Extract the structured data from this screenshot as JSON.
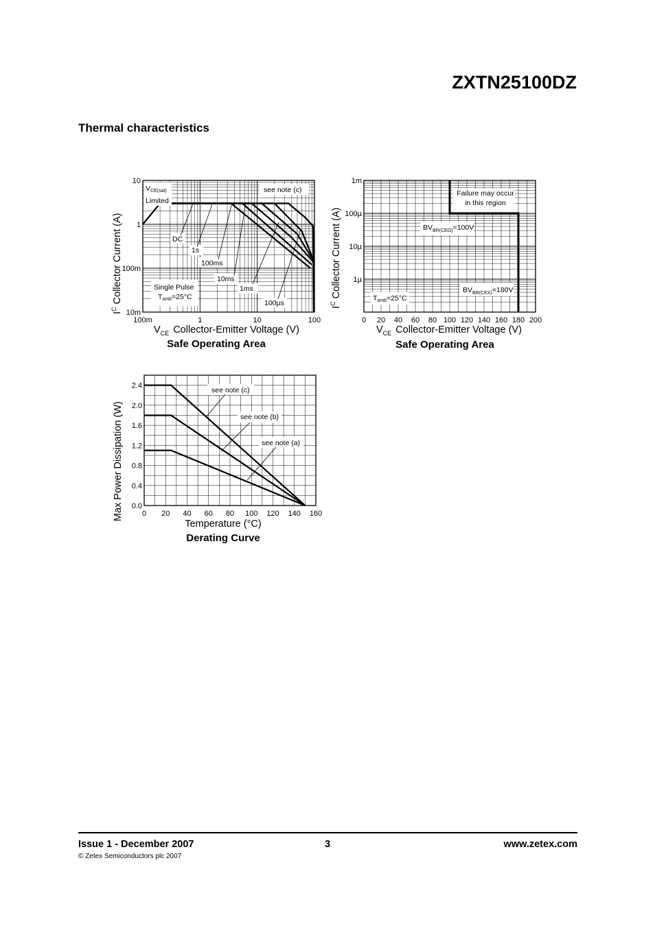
{
  "header": {
    "part_number": "ZXTN25100DZ"
  },
  "section": {
    "title": "Thermal characteristics"
  },
  "footer": {
    "issue": "Issue 1 - December 2007",
    "page": "3",
    "website": "www.zetex.com",
    "copyright": "© Zetex Semiconductors plc 2007"
  },
  "chart_data": [
    {
      "type": "line",
      "title": "Safe Operating Area",
      "xlabel": "Collector-Emitter Voltage (V)",
      "xlabel_symbol": "V",
      "xlabel_symbol_sub": "CE",
      "ylabel": "Collector Current (A)",
      "ylabel_symbol": "I",
      "ylabel_symbol_sub": "C",
      "x_scale": "log",
      "y_scale": "log",
      "xlim": [
        0.1,
        100
      ],
      "ylim": [
        0.01,
        10
      ],
      "x_ticks": [
        0.1,
        1,
        10,
        100
      ],
      "x_tick_labels": [
        "100m",
        "1",
        "10",
        "100"
      ],
      "y_ticks": [
        0.01,
        0.1,
        1,
        10
      ],
      "y_tick_labels": [
        "10m",
        "100m",
        "1",
        "10"
      ],
      "grid": true,
      "series": [
        {
          "name": "DC",
          "x": [
            0.1,
            0.2,
            3.5,
            85
          ],
          "y": [
            1,
            3,
            3,
            0.1
          ]
        },
        {
          "name": "1s",
          "x": [
            0.2,
            5.5,
            90
          ],
          "y": [
            3,
            3,
            0.12
          ]
        },
        {
          "name": "100ms",
          "x": [
            0.2,
            8,
            40,
            95
          ],
          "y": [
            3,
            3,
            0.5,
            0.14
          ]
        },
        {
          "name": "10ms",
          "x": [
            0.2,
            12,
            50,
            95
          ],
          "y": [
            3,
            3,
            0.6,
            0.15
          ]
        },
        {
          "name": "1ms",
          "x": [
            0.2,
            20,
            60,
            95
          ],
          "y": [
            3,
            3,
            0.7,
            0.16
          ]
        },
        {
          "name": "100µs",
          "x": [
            0.2,
            35,
            70,
            95,
            97
          ],
          "y": [
            3,
            3,
            1.4,
            0.9,
            0.01
          ]
        }
      ],
      "annotations": {
        "vce_limited": "Limited",
        "vce_sym": "V",
        "vce_sub": "CE(sat)",
        "note": "see note (c)",
        "dc": "DC",
        "s1": "1s",
        "ms100": "100ms",
        "ms10": "10ms",
        "ms1": "1ms",
        "us100": "100µs",
        "single_pulse": "Single Pulse",
        "tamb_sym": "T",
        "tamb_sub": "amb",
        "tamb_val": "=25°C"
      }
    },
    {
      "type": "line",
      "title": "Safe Operating Area",
      "xlabel": "Collector-Emitter Voltage (V)",
      "xlabel_symbol": "V",
      "xlabel_symbol_sub": "CE",
      "ylabel": "Collector Current (A)",
      "ylabel_symbol": "I",
      "ylabel_symbol_sub": "C",
      "x_scale": "linear",
      "y_scale": "log",
      "xlim": [
        0,
        200
      ],
      "ylim": [
        1e-07,
        0.001
      ],
      "x_ticks": [
        0,
        20,
        40,
        60,
        80,
        100,
        120,
        140,
        160,
        180,
        200
      ],
      "x_tick_labels": [
        "0",
        "20",
        "40",
        "60",
        "80",
        "100",
        "120",
        "140",
        "160",
        "180",
        "200"
      ],
      "y_ticks": [
        1e-06,
        1e-05,
        0.0001,
        0.001
      ],
      "y_tick_labels": [
        "1µ",
        "10µ",
        "100µ",
        "1m"
      ],
      "grid": true,
      "series": [
        {
          "name": "failure boundary",
          "x": [
            100,
            100,
            180,
            180
          ],
          "y": [
            0.001,
            0.0001,
            0.0001,
            1e-07
          ]
        }
      ],
      "annotations": {
        "failure1": "Failure may occur",
        "failure2": "in this region",
        "bv_sym": "BV",
        "bv_ceo_sub": "BR(CEO)",
        "bv_ceo_val": "=100V",
        "bv_cex_sub": "BR(CEX)",
        "bv_cex_val": "=180V",
        "tamb_sym": "T",
        "tamb_sub": "amb",
        "tamb_val": "=25°C"
      }
    },
    {
      "type": "line",
      "title": "Derating Curve",
      "xlabel": "Temperature (°C)",
      "ylabel": "Max Power Dissipation (W)",
      "xlim": [
        0,
        160
      ],
      "ylim": [
        0,
        2.6
      ],
      "x_ticks": [
        0,
        20,
        40,
        60,
        80,
        100,
        120,
        140,
        160
      ],
      "y_ticks": [
        0.0,
        0.4,
        0.8,
        1.2,
        1.6,
        2.0,
        2.4
      ],
      "y_tick_labels": [
        "0.0",
        "0.4",
        "0.8",
        "1.2",
        "1.6",
        "2.0",
        "2.4"
      ],
      "grid": true,
      "series": [
        {
          "name": "see note (c)",
          "x": [
            0,
            25,
            150
          ],
          "y": [
            2.4,
            2.4,
            0
          ]
        },
        {
          "name": "see note (b)",
          "x": [
            0,
            25,
            150
          ],
          "y": [
            1.8,
            1.8,
            0
          ]
        },
        {
          "name": "see note (a)",
          "x": [
            0,
            25,
            150
          ],
          "y": [
            1.1,
            1.1,
            0
          ]
        }
      ]
    }
  ]
}
